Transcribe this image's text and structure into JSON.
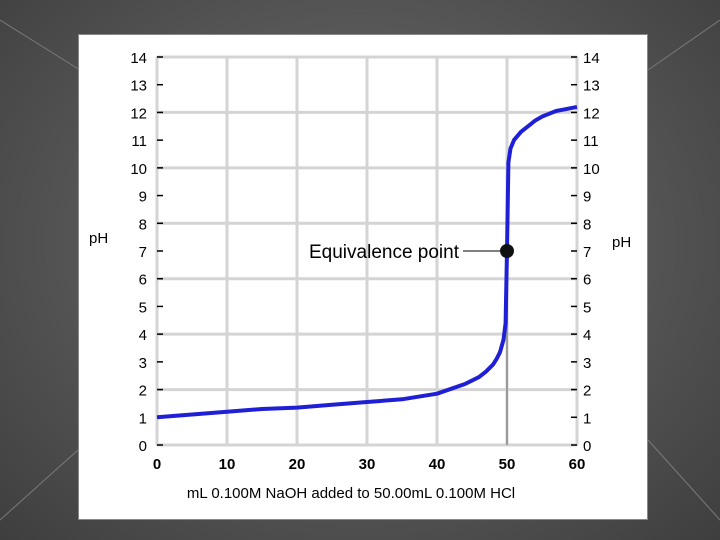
{
  "chart_data": {
    "type": "line",
    "xlabel": "mL 0.100M NaOH added to 50.00mL 0.100M HCl",
    "ylabel_left": "pH",
    "ylabel_right": "pH",
    "x_ticks": [
      "0",
      "10",
      "20",
      "30",
      "40",
      "50",
      "60"
    ],
    "y_ticks": [
      "0",
      "1",
      "2",
      "3",
      "4",
      "5",
      "6",
      "7",
      "8",
      "9",
      "10",
      "11",
      "12",
      "13",
      "14"
    ],
    "xlim": [
      0,
      60
    ],
    "ylim": [
      0,
      14
    ],
    "grid": true,
    "series": [
      {
        "color": "#1f1fd6",
        "x": [
          0,
          5,
          10,
          15,
          20,
          25,
          30,
          35,
          40,
          44,
          46,
          47,
          48,
          48.5,
          49,
          49.5,
          49.8,
          50,
          50.2,
          50.5,
          51,
          52,
          53,
          54,
          55,
          56,
          57,
          58,
          59,
          60
        ],
        "y": [
          1.0,
          1.1,
          1.2,
          1.3,
          1.35,
          1.45,
          1.55,
          1.65,
          1.85,
          2.2,
          2.45,
          2.65,
          2.9,
          3.1,
          3.35,
          3.8,
          4.4,
          7.0,
          10.2,
          10.7,
          11.0,
          11.3,
          11.5,
          11.7,
          11.85,
          11.95,
          12.05,
          12.1,
          12.15,
          12.2
        ]
      }
    ],
    "annotation": {
      "label": "Equivalence point",
      "x": 50,
      "y": 7
    }
  }
}
